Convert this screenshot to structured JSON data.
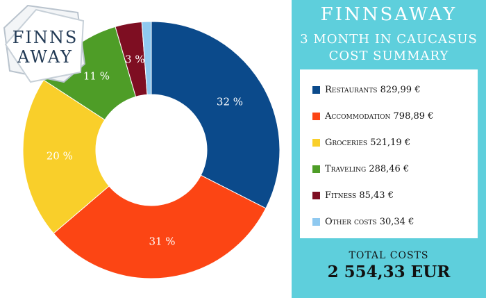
{
  "brand": {
    "title": "FINNSAWAY",
    "subtitle_line1": "3 month in Caucasus",
    "subtitle_line2": "Cost summary",
    "logo_line1": "FINNS",
    "logo_line2": "AWAY"
  },
  "legend": [
    {
      "label": "Restaurants",
      "value": "829,99 €",
      "color": "#0b4a8b"
    },
    {
      "label": "Accommodation",
      "value": "798,89 €",
      "color": "#fc4514"
    },
    {
      "label": "Groceries",
      "value": "521,19 €",
      "color": "#f9cf2a"
    },
    {
      "label": "Traveling",
      "value": "288,46 €",
      "color": "#4e9d27"
    },
    {
      "label": "Fitness",
      "value": "85,43 €",
      "color": "#7e0e22"
    },
    {
      "label": "Other costs",
      "value": "30,34 €",
      "color": "#8fc9f0"
    }
  ],
  "total": {
    "label": "TOTAL COSTS",
    "value": "2 554,33 EUR"
  },
  "chart_data": {
    "type": "pie",
    "categories": [
      "Restaurants",
      "Accommodation",
      "Groceries",
      "Traveling",
      "Fitness",
      "Other costs"
    ],
    "values": [
      829.99,
      798.89,
      521.19,
      288.46,
      85.43,
      30.34
    ],
    "labels": [
      "32 %",
      "31 %",
      "20 %",
      "11 %",
      "3 %",
      ""
    ],
    "colors": [
      "#0b4a8b",
      "#fc4514",
      "#f9cf2a",
      "#4e9d27",
      "#7e0e22",
      "#8fc9f0"
    ],
    "donut": true
  }
}
